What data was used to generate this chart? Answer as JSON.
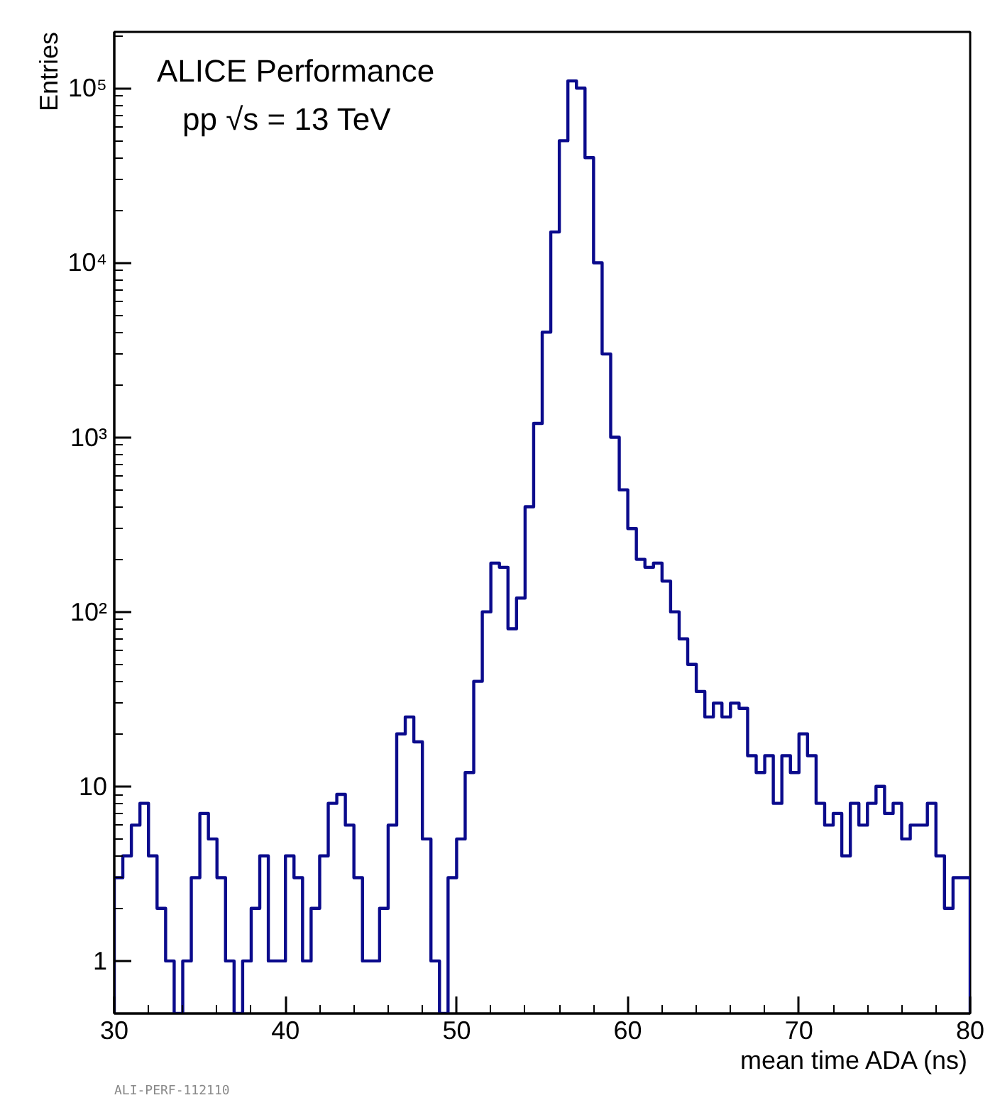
{
  "chart_data": {
    "type": "histogram",
    "xlabel": "mean time ADA (ns)",
    "ylabel": "Entries",
    "annotations": [
      "ALICE  Performance",
      "pp  √s = 13  TeV",
      "ALI-PERF-112110"
    ],
    "bins": [
      30,
      30.5,
      31,
      31.5,
      32,
      32.5,
      33,
      33.5,
      34,
      34.5,
      35,
      35.5,
      36,
      36.5,
      37,
      37.5,
      38,
      38.5,
      39,
      39.5,
      40,
      40.5,
      41,
      41.5,
      42,
      42.5,
      43,
      43.5,
      44,
      44.5,
      45,
      45.5,
      46,
      46.5,
      47,
      47.5,
      48,
      48.5,
      49,
      49.5,
      50,
      50.5,
      51,
      51.5,
      52,
      52.5,
      53,
      53.5,
      54,
      54.5,
      55,
      55.5,
      56,
      56.5,
      57,
      57.5,
      58,
      58.5,
      59,
      59.5,
      60,
      60.5,
      61,
      61.5,
      62,
      62.5,
      63,
      63.5,
      64,
      64.5,
      65,
      65.5,
      66,
      66.5,
      67,
      67.5,
      68,
      68.5,
      69,
      69.5,
      70,
      70.5,
      71,
      71.5,
      72,
      72.5,
      73,
      73.5,
      74,
      74.5,
      75,
      75.5,
      76,
      76.5,
      77,
      77.5,
      78,
      78.5,
      79,
      79.5,
      80
    ],
    "values": [
      3,
      4,
      6,
      8,
      4,
      2,
      1,
      null,
      1,
      3,
      7,
      5,
      3,
      1,
      null,
      1,
      2,
      4,
      1,
      1,
      4,
      3,
      1,
      2,
      4,
      8,
      9,
      6,
      3,
      1,
      1,
      2,
      6,
      20,
      25,
      18,
      5,
      1,
      null,
      3,
      5,
      12,
      40,
      100,
      190,
      180,
      80,
      120,
      400,
      1200,
      4000,
      15000,
      50000,
      110000,
      100000,
      40000,
      10000,
      3000,
      1000,
      500,
      300,
      200,
      180,
      190,
      150,
      100,
      70,
      50,
      35,
      25,
      30,
      25,
      30,
      28,
      15,
      12,
      15,
      8,
      15,
      12,
      20,
      15,
      8,
      6,
      7,
      4,
      8,
      6,
      8,
      10,
      7,
      8,
      5,
      6,
      6,
      8,
      4,
      2,
      3,
      3
    ],
    "color": "#0a0a8c",
    "log": "y",
    "xlim": [
      30,
      80
    ],
    "xticks": [
      30,
      40,
      50,
      60,
      70,
      80
    ],
    "ylim": [
      0.5,
      210000
    ],
    "yticks": [
      1,
      10,
      {
        "value": 100,
        "label": "10²"
      },
      {
        "value": 1000,
        "label": "10³"
      },
      {
        "value": 10000,
        "label": "10⁴"
      },
      {
        "value": 100000,
        "label": "10⁵"
      }
    ]
  }
}
